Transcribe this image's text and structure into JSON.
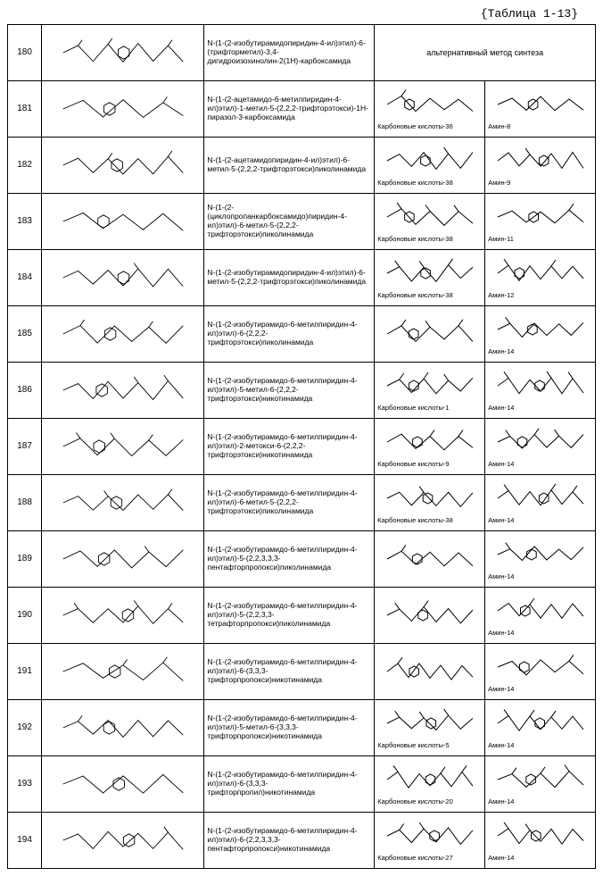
{
  "title": "{Таблица 1-13}",
  "alt_text": "альтернативный метод синтеза",
  "acid_prefix": "Карбоновые кислоты-",
  "amine_prefix": "Амин-",
  "colors": {
    "border": "#000000",
    "background": "#ffffff",
    "text": "#000000"
  },
  "rows": [
    {
      "id": "180",
      "name": "N-(1-(2-изобутирамидопиридин-4-ил)этил)-6-(трифторметил)-3,4-дигидроизохинолин-2(1H)-карбоксамида",
      "alt": true
    },
    {
      "id": "181",
      "name": "N-(1-(2-ацетамидо-6-метилпиридин-4-ил)этил)-1-метил-5-(2,2,2-трифторэтокси)-1H-пиразол-3-карбоксамида",
      "acid": "36",
      "amine": "8"
    },
    {
      "id": "182",
      "name": "N-(1-(2-ацетамидопиридин-4-ил)этил)-6-метил-5-(2,2,2-трифторэтокси)пиколинамида",
      "acid": "38",
      "amine": "9"
    },
    {
      "id": "183",
      "name": "N-(1-(2-(циклопропанкарбоксамидо)пиридин-4-ил)этил)-6-метил-5-(2,2,2-трифторэтокси)пиколинамида",
      "acid": "38",
      "amine": "11"
    },
    {
      "id": "184",
      "name": "N-(1-(2-изобутирамидопиридин-4-ил)этил)-6-метил-5-(2,2,2-трифторэтокси)пиколинамида",
      "acid": "38",
      "amine": "12"
    },
    {
      "id": "185",
      "name": "N-(1-(2-изобутирамидо-6-метилпиридин-4-ил)этил)-6-(2,2,2-трифторэтокси)пиколинамида",
      "acid": "",
      "amine": "14"
    },
    {
      "id": "186",
      "name": "N-(1-(2-изобутирамидо-6-метилпиридин-4-ил)этил)-5-метил-6-(2,2,2-трифторэтокси)никотинамида",
      "acid": "1",
      "amine": "14"
    },
    {
      "id": "187",
      "name": "N-(1-(2-изобутирамидо-6-метилпиридин-4-ил)этил)-2-метокси-6-(2,2,2-трифторэтокси)никотинамида",
      "acid": "9",
      "amine": "14"
    },
    {
      "id": "188",
      "name": "N-(1-(2-изобутирамидо-6-метилпиридин-4-ил)этил)-6-метил-5-(2,2,2-трифторэтокси)пиколинамида",
      "acid": "38",
      "amine": "14"
    },
    {
      "id": "189",
      "name": "N-(1-(2-изобутирамидо-6-метилпиридин-4-ил)этил)-5-(2,2,3,3,3-пентафторпропокси)пиколинамида",
      "acid": "",
      "amine": "14"
    },
    {
      "id": "190",
      "name": "N-(1-(2-изобутирамидо-6-метилпиридин-4-ил)этил)-5-(2,2,3,3-тетрафторпропокси)пиколинамида",
      "acid": "",
      "amine": "14"
    },
    {
      "id": "191",
      "name": "N-(1-(2-изобутирамидо-6-метилпиридин-4-ил)этил)-6-(3,3,3-трифторпропокси)никотинамида",
      "acid": "",
      "amine": "14"
    },
    {
      "id": "192",
      "name": "N-(1-(2-изобутирамидо-6-метилпиридин-4-ил)этил)-5-метил-6-(3,3,3-трифторпропокси)никотинамида",
      "acid": "5",
      "amine": "14"
    },
    {
      "id": "193",
      "name": "N-(1-(2-изобутирамидо-6-метилпиридин-4-ил)этил)-6-(3,3,3-трифторпропил)никотинамида",
      "acid": "20",
      "amine": "14"
    },
    {
      "id": "194",
      "name": "N-(1-(2-изобутирамидо-6-метилпиридин-4-ил)этил)-6-(2,2,3,3,3-пентафторпропокси)никотинамида",
      "acid": "27",
      "amine": "14"
    }
  ]
}
